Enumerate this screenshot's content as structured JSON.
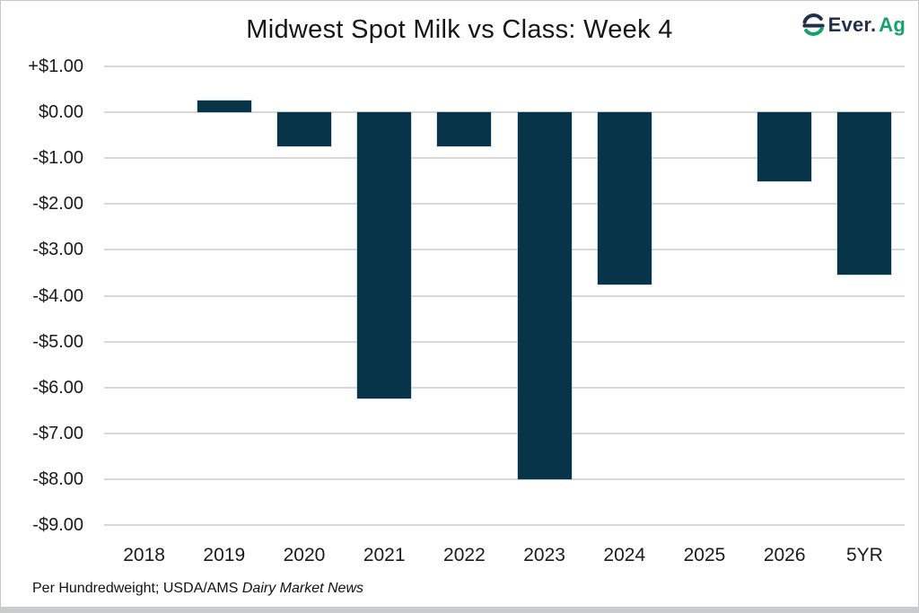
{
  "header": {
    "title": "Midwest Spot Milk vs Class: Week 4",
    "logo": {
      "icon": "ever-ag-logo-icon",
      "text_primary": "Ever.",
      "text_accent": "Ag"
    }
  },
  "chart_data": {
    "type": "bar",
    "title": "Midwest Spot Milk vs Class: Week 4",
    "categories": [
      "2018",
      "2019",
      "2020",
      "2021",
      "2022",
      "2023",
      "2024",
      "2025",
      "2026",
      "5YR"
    ],
    "values": [
      0,
      0.25,
      -0.75,
      -6.25,
      -0.75,
      -8.0,
      -3.75,
      0,
      -1.5,
      -3.55
    ],
    "unit": "USD per hundredweight",
    "xlabel": "",
    "ylabel": "",
    "ylim": [
      -9,
      1
    ],
    "grid": true,
    "legend": false,
    "bar_color": "#073449",
    "gridline_color": "#d8d8d8",
    "y_ticks": [
      {
        "label": "+$1.00",
        "value": 1
      },
      {
        "label": "$0.00",
        "value": 0
      },
      {
        "label": "-$1.00",
        "value": -1
      },
      {
        "label": "-$2.00",
        "value": -2
      },
      {
        "label": "-$3.00",
        "value": -3
      },
      {
        "label": "-$4.00",
        "value": -4
      },
      {
        "label": "-$5.00",
        "value": -5
      },
      {
        "label": "-$6.00",
        "value": -6
      },
      {
        "label": "-$7.00",
        "value": -7
      },
      {
        "label": "-$8.00",
        "value": -8
      },
      {
        "label": "-$9.00",
        "value": -9
      }
    ]
  },
  "footer": {
    "text": "Per Hundredweight; USDA/AMS ",
    "text_italic": "Dairy Market News"
  },
  "colors": {
    "bar": "#073449",
    "grid": "#d8d8d8",
    "logo_navy": "#233049",
    "logo_green": "#12a36b",
    "frame_border": "#c9c9c9",
    "bottom_strip": "#c9cccd"
  }
}
